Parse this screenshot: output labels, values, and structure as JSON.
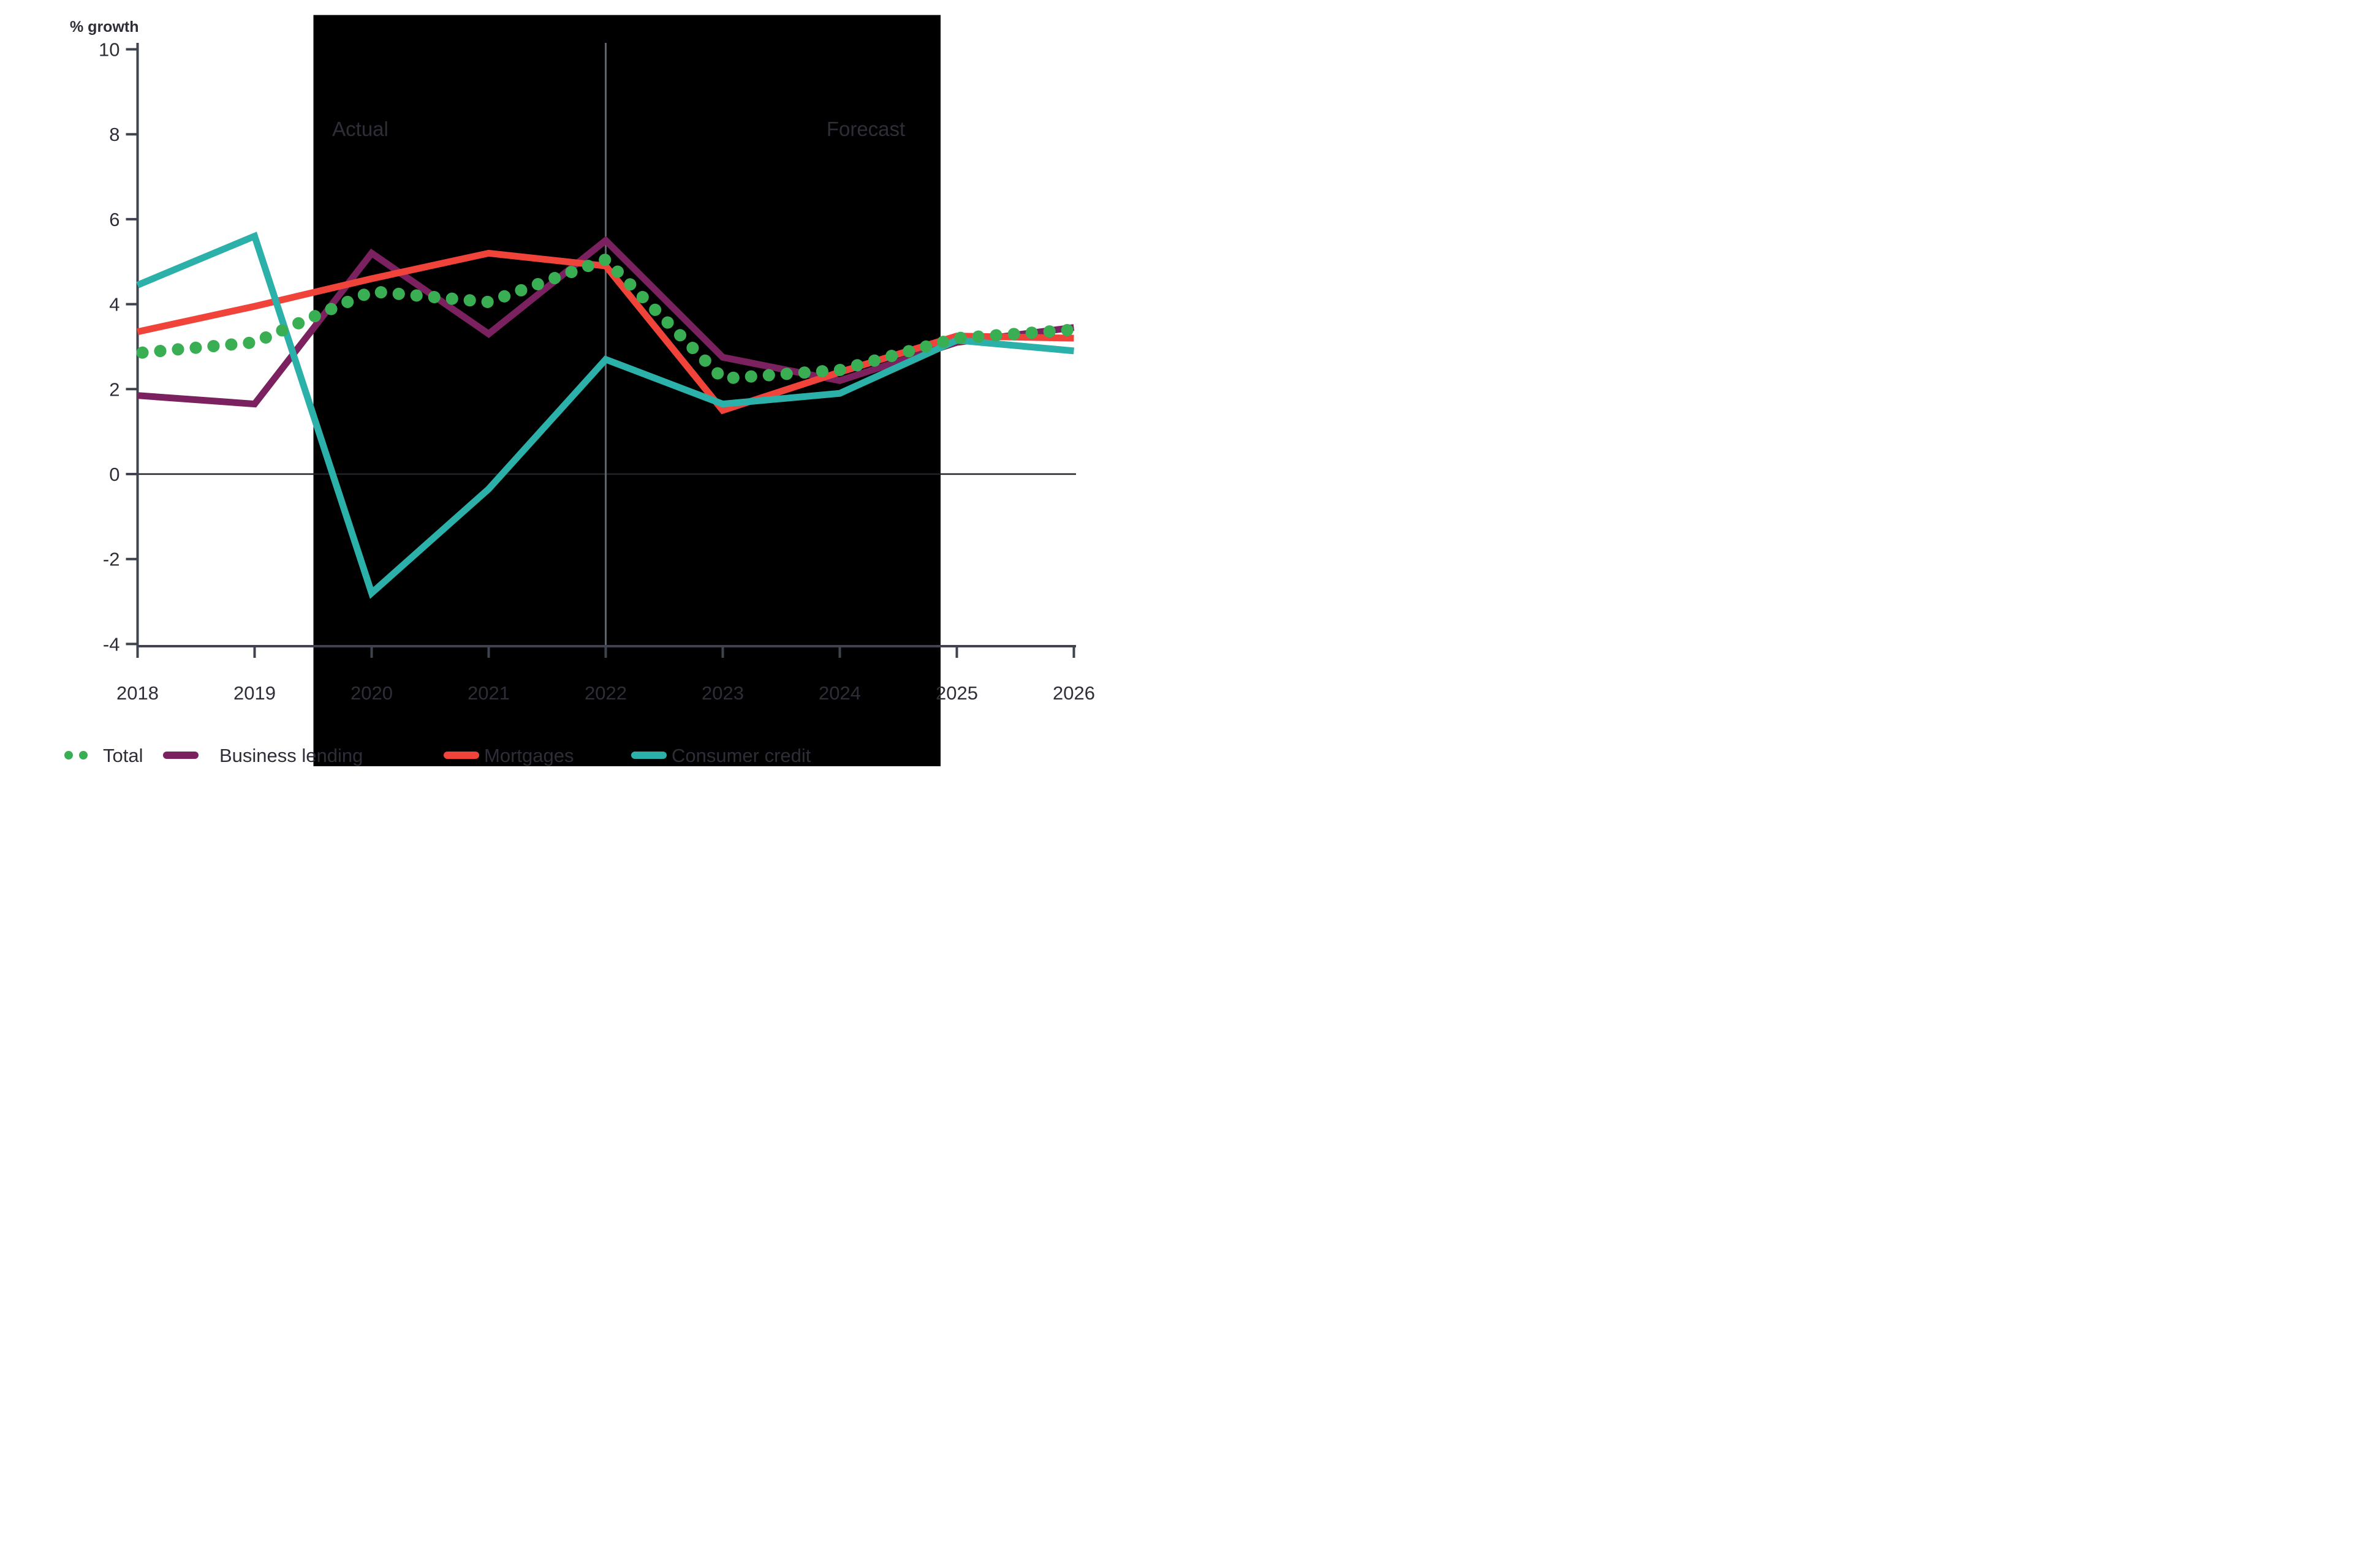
{
  "chart_data": {
    "type": "line",
    "title": "",
    "ylabel": "% growth",
    "xlabel": "",
    "x": [
      2018,
      2019,
      2020,
      2021,
      2022,
      2023,
      2024,
      2025,
      2026
    ],
    "yticks": [
      10,
      8,
      6,
      4,
      2,
      0,
      -2,
      -4
    ],
    "ylim": [
      -4,
      10
    ],
    "grid": "zero-line-only",
    "legend_position": "bottom",
    "annotations": {
      "actual": "Actual",
      "forecast": "Forecast",
      "divider_year": 2022
    },
    "overlay": {
      "start_year": 2019.5,
      "end_year": 2024.86,
      "color": "#000000"
    },
    "series": [
      {
        "name": "Total",
        "style": "dotted",
        "color": "#3aae53",
        "values": [
          2.85,
          3.1,
          4.3,
          4.05,
          5.05,
          2.25,
          2.45,
          3.2,
          3.4
        ]
      },
      {
        "name": "Business lending",
        "style": "solid",
        "color": "#7b2160",
        "values": [
          1.85,
          1.65,
          5.2,
          3.3,
          5.5,
          2.75,
          2.2,
          3.1,
          3.45
        ]
      },
      {
        "name": "Mortgages",
        "style": "solid",
        "color": "#f0443a",
        "values": [
          3.35,
          3.95,
          4.6,
          5.2,
          4.9,
          1.5,
          2.4,
          3.25,
          3.2
        ]
      },
      {
        "name": "Consumer credit",
        "style": "solid",
        "color": "#2bb1aa",
        "values": [
          4.45,
          5.6,
          -2.8,
          -0.35,
          2.7,
          1.65,
          1.9,
          3.15,
          2.9
        ]
      }
    ],
    "styles": {
      "background": "#ffffff",
      "axis_color": "#3e434e",
      "zero_line_color": "#23232c",
      "divider_color": "#5c6570",
      "text_color": "#2e2e38"
    }
  }
}
